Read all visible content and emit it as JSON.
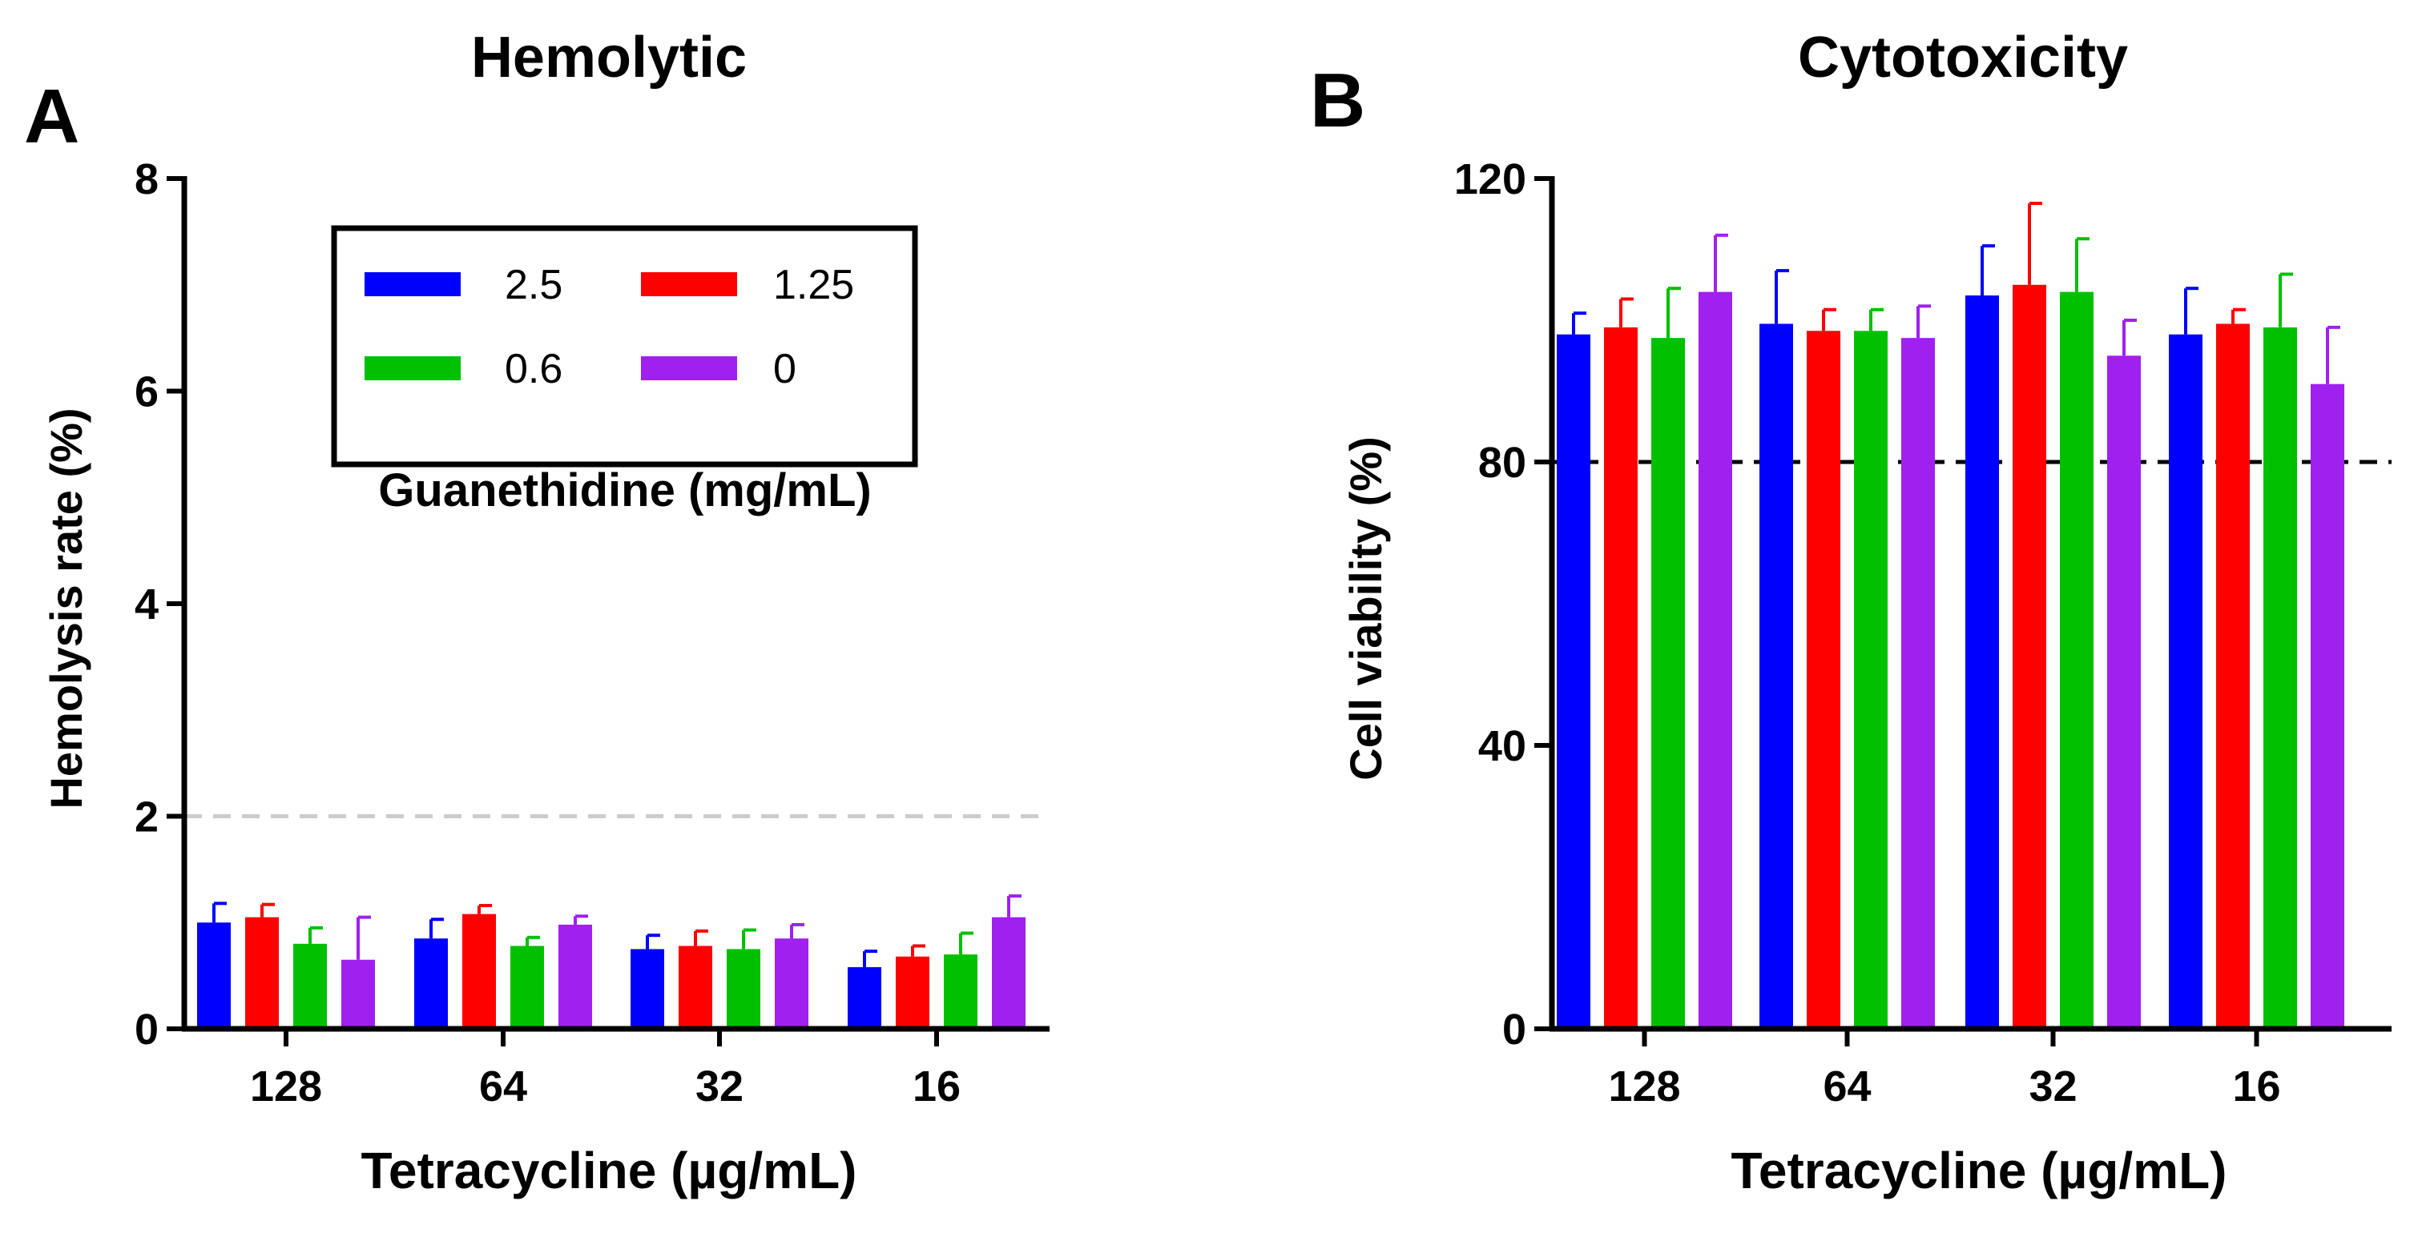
{
  "chart_data": [
    {
      "panel_label": "A",
      "type": "bar",
      "title": "Hemolytic",
      "xlabel": "Tetracycline (µg/mL)",
      "ylabel": "Hemolysis rate (%)",
      "ylim": [
        0,
        8
      ],
      "yticks": [
        "0",
        "2",
        "4",
        "6",
        "8"
      ],
      "categories": [
        "128",
        "64",
        "32",
        "16"
      ],
      "series": [
        {
          "name": "2.5",
          "color": "#0000ff",
          "values": [
            1.0,
            0.85,
            0.75,
            0.58
          ],
          "errors": [
            0.18,
            0.18,
            0.13,
            0.15
          ]
        },
        {
          "name": "1.25",
          "color": "#ff0000",
          "values": [
            1.05,
            1.08,
            0.78,
            0.68
          ],
          "errors": [
            0.12,
            0.08,
            0.14,
            0.1
          ]
        },
        {
          "name": "0.6",
          "color": "#00c000",
          "values": [
            0.8,
            0.78,
            0.75,
            0.7
          ],
          "errors": [
            0.15,
            0.08,
            0.18,
            0.2
          ]
        },
        {
          "name": "0",
          "color": "#a020f0",
          "values": [
            0.65,
            0.98,
            0.85,
            1.05
          ],
          "errors": [
            0.4,
            0.08,
            0.13,
            0.2
          ]
        }
      ],
      "reference_line": {
        "y": 2,
        "color": "#cccccc"
      },
      "legend": {
        "position": "top-right",
        "title": "Guanethidine (mg/mL)",
        "order": [
          "2.5",
          "1.25",
          "0.6",
          "0"
        ]
      }
    },
    {
      "panel_label": "B",
      "type": "bar",
      "title": "Cytotoxicity",
      "xlabel": "Tetracycline (µg/mL)",
      "ylabel": "Cell viability (%)",
      "ylim": [
        0,
        120
      ],
      "yticks": [
        "0",
        "40",
        "80",
        "120"
      ],
      "categories": [
        "128",
        "64",
        "32",
        "16"
      ],
      "series": [
        {
          "name": "2.5",
          "color": "#0000ff",
          "values": [
            98,
            99.5,
            103.5,
            98
          ],
          "errors": [
            3,
            7.5,
            7,
            6.5
          ]
        },
        {
          "name": "1.25",
          "color": "#ff0000",
          "values": [
            99,
            98.5,
            105,
            99.5
          ],
          "errors": [
            4,
            3,
            11.5,
            2
          ]
        },
        {
          "name": "0.6",
          "color": "#00c000",
          "values": [
            97.5,
            98.5,
            104,
            99
          ],
          "errors": [
            7,
            3,
            7.5,
            7.5
          ]
        },
        {
          "name": "0",
          "color": "#a020f0",
          "values": [
            104,
            97.5,
            95,
            91
          ],
          "errors": [
            8,
            4.5,
            5,
            8
          ]
        }
      ],
      "reference_line": {
        "y": 80,
        "color": "#000000"
      }
    }
  ]
}
